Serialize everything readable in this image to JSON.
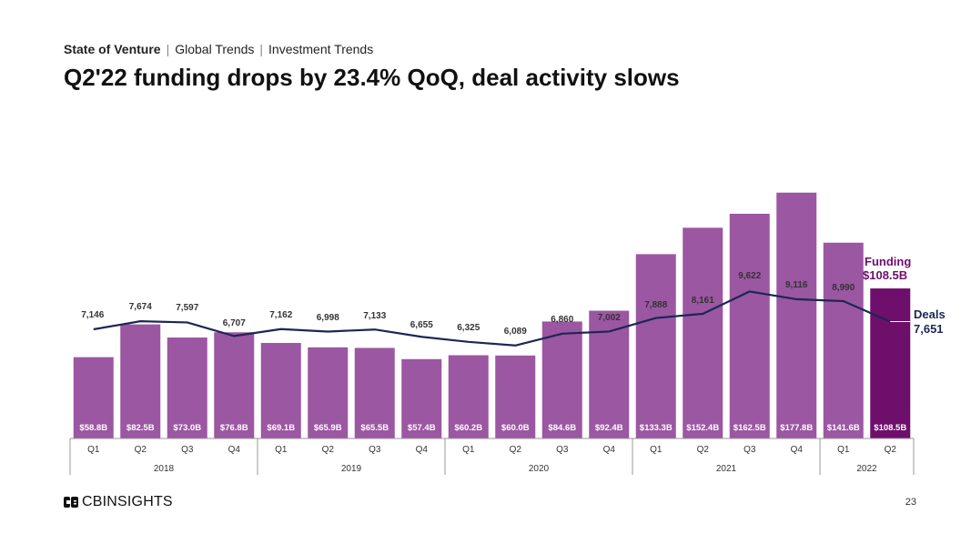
{
  "breadcrumb": [
    "State of Venture",
    "Global Trends",
    "Investment Trends"
  ],
  "title": "Q2'22 funding drops by 23.4% QoQ, deal activity slows",
  "footer": {
    "brand": "CBINSIGHTS",
    "page_number": "23"
  },
  "colors": {
    "bar": "#9b57a1",
    "bar_highlight": "#6e0f6b",
    "line": "#1c2753",
    "highlight_text": "#6e0f6b"
  },
  "chart_data": {
    "type": "bar",
    "title": "",
    "xlabel": "",
    "ylabel": "",
    "ylim": [
      0,
      200
    ],
    "categories": [
      "Q1",
      "Q2",
      "Q3",
      "Q4",
      "Q1",
      "Q2",
      "Q3",
      "Q4",
      "Q1",
      "Q2",
      "Q3",
      "Q4",
      "Q1",
      "Q2",
      "Q3",
      "Q4",
      "Q1",
      "Q2"
    ],
    "years": [
      {
        "label": "2018",
        "count": 4
      },
      {
        "label": "2019",
        "count": 4
      },
      {
        "label": "2020",
        "count": 4
      },
      {
        "label": "2021",
        "count": 4
      },
      {
        "label": "2022",
        "count": 2
      }
    ],
    "series": [
      {
        "name": "Funding",
        "type": "bar",
        "unit": "$B",
        "values": [
          58.8,
          82.5,
          73.0,
          76.8,
          69.1,
          65.9,
          65.5,
          57.4,
          60.2,
          60.0,
          84.6,
          92.4,
          133.3,
          152.4,
          162.5,
          177.8,
          141.6,
          108.5
        ],
        "labels": [
          "$58.8B",
          "$82.5B",
          "$73.0B",
          "$76.8B",
          "$69.1B",
          "$65.9B",
          "$65.5B",
          "$57.4B",
          "$60.2B",
          "$60.0B",
          "$84.6B",
          "$92.4B",
          "$133.3B",
          "$152.4B",
          "$162.5B",
          "$177.8B",
          "$141.6B",
          "$108.5B"
        ]
      },
      {
        "name": "Deals",
        "type": "line",
        "values": [
          7146,
          7674,
          7597,
          6707,
          7162,
          6998,
          7133,
          6655,
          6325,
          6089,
          6860,
          7002,
          7888,
          8161,
          9622,
          9116,
          8990,
          7651
        ],
        "labels": [
          "7,146",
          "7,674",
          "7,597",
          "6,707",
          "7,162",
          "6,998",
          "7,133",
          "6,655",
          "6,325",
          "6,089",
          "6,860",
          "7,002",
          "7,888",
          "8,161",
          "9,622",
          "9,116",
          "8,990",
          "7,651"
        ]
      }
    ],
    "annotations": {
      "funding_label": "Funding",
      "funding_value": "$108.5B",
      "deals_label": "Deals",
      "deals_value": "7,651"
    }
  }
}
